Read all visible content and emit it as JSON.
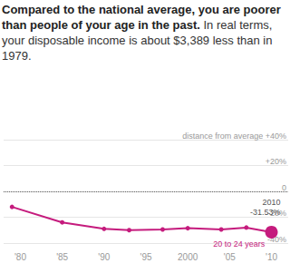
{
  "chart_data": {
    "type": "line",
    "title": "Compared to the national average, you are poorer than people of your age in the past.",
    "subtitle": "In real terms, your disposable income is about $3,389 less than in 1979.",
    "x": [
      1979,
      1985,
      1990,
      1993,
      1997,
      2000,
      2004,
      2007,
      2010
    ],
    "series": [
      {
        "name": "20 to 24 years",
        "color": "#c51b7d",
        "values": [
          -12,
          -24,
          -29,
          -30,
          -29.5,
          -28.5,
          -29.5,
          -28,
          -31.53
        ],
        "value_labels": [
          null,
          null,
          null,
          null,
          null,
          null,
          null,
          null,
          "-31.53%"
        ]
      }
    ],
    "xlim": [
      1978,
      2012
    ],
    "xticks": [
      {
        "value": 1980,
        "label": "'80"
      },
      {
        "value": 1985,
        "label": "'85"
      },
      {
        "value": 1990,
        "label": "'90"
      },
      {
        "value": 1995,
        "label": "'95"
      },
      2000,
      {
        "value": 2005,
        "label": "'05"
      },
      {
        "value": 2010,
        "label": "'10"
      }
    ],
    "ylim": [
      -40,
      40
    ],
    "yticks": [
      {
        "value": -40,
        "label": "-40%"
      },
      {
        "value": -20,
        "label": "-20%"
      },
      0,
      {
        "value": 20,
        "label": "+20%"
      },
      {
        "value": 40,
        "label": "distance from average +40%"
      }
    ],
    "grid": true,
    "marker": "circle",
    "data_labels": true
  }
}
